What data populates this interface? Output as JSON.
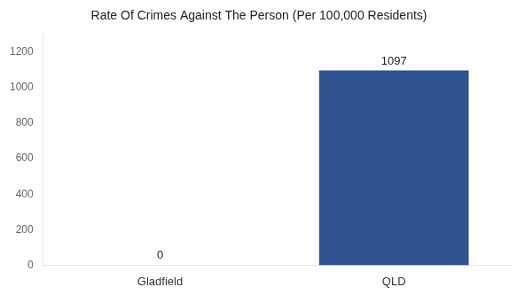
{
  "chart_data": {
    "type": "bar",
    "title": "Rate Of Crimes Against The Person (Per 100,000 Residents)",
    "categories": [
      "Gladfield",
      "QLD"
    ],
    "values": [
      0,
      1097
    ],
    "color": "#2e5490",
    "ylim": [
      0,
      1300
    ],
    "yticks": [
      0,
      200,
      400,
      600,
      800,
      1000,
      1200
    ],
    "grid": false,
    "data_labels": true
  }
}
